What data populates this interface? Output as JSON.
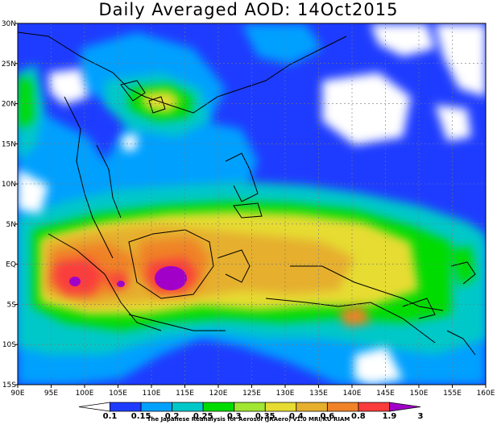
{
  "title": "Daily Averaged AOD: 14Oct2015",
  "credit": "The Japanese Reanalysis for Aerosol (JRAero) v1.0 MRI/KU RIAM",
  "map": {
    "lon_range": [
      90,
      160
    ],
    "lat_range": [
      -15,
      30
    ],
    "x_ticks": [
      "90E",
      "95E",
      "100E",
      "105E",
      "110E",
      "115E",
      "120E",
      "125E",
      "130E",
      "135E",
      "140E",
      "145E",
      "150E",
      "155E",
      "160E"
    ],
    "y_ticks": [
      "15S",
      "10S",
      "5S",
      "EQ",
      "5N",
      "10N",
      "15N",
      "20N",
      "25N",
      "30N"
    ],
    "gridlines": "dashed"
  },
  "colorbar": {
    "labels": [
      "0.1",
      "0.15",
      "0.2",
      "0.25",
      "0.3",
      "0.35",
      "0.4",
      "0.6",
      "0.8",
      "1.9",
      "3"
    ],
    "colors": [
      "#ffffff",
      "#1e3cff",
      "#00a0ff",
      "#00c8c8",
      "#00dc00",
      "#a0e632",
      "#e6dc32",
      "#e6af2d",
      "#f08228",
      "#fa3c3c",
      "#a000c8"
    ]
  }
}
